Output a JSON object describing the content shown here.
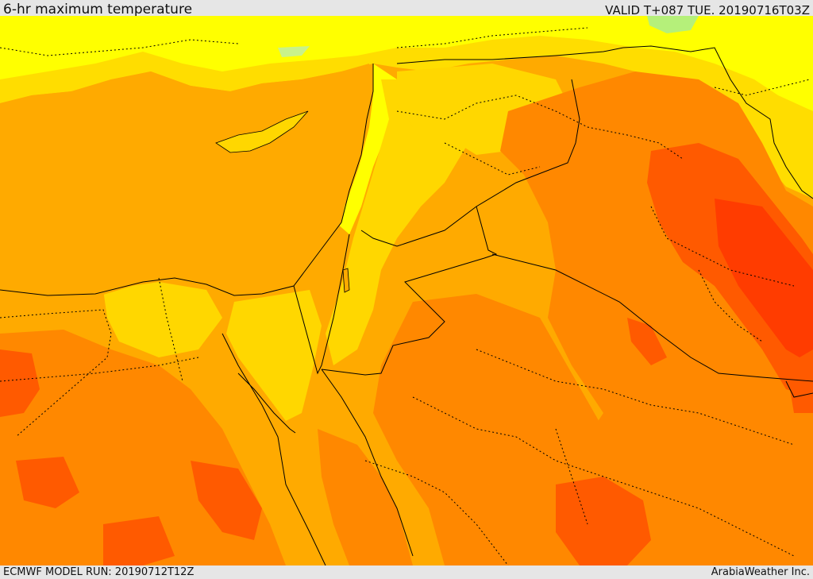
{
  "header": {
    "title": "6-hr maximum temperature",
    "valid": "VALID T+087 TUE. 20190716T03Z"
  },
  "footer": {
    "model_run": "ECMWF MODEL RUN: 20190712T12Z",
    "credit": "ArabiaWeather Inc."
  },
  "palette": {
    "light_green": "#b5f07a",
    "yellow": "#ffff00",
    "gold": "#ffd700",
    "amber": "#ffaa00",
    "orange": "#ff8800",
    "red_orange": "#ff5a00",
    "red": "#ff3300",
    "border": "#000000"
  }
}
